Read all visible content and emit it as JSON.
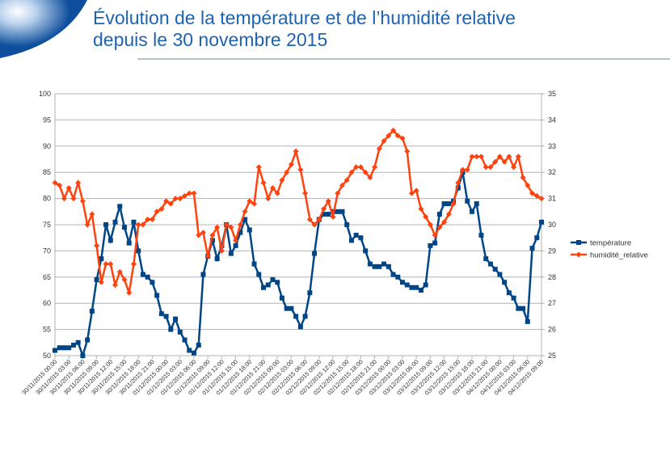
{
  "header": {
    "title": [
      "Évolution de la température et de l’humidité relative",
      "depuis le 30 novembre 2015"
    ]
  },
  "chart_data": {
    "type": "line",
    "categories": [
      "30/11/2015 00:00",
      null,
      null,
      "30/11/2015 03:00",
      null,
      null,
      "30/11/2015 06:00",
      null,
      null,
      "30/11/2015 09:00",
      null,
      null,
      "30/11/2015 12:00",
      null,
      null,
      "30/11/2015 15:00",
      null,
      null,
      "30/11/2015 18:00",
      null,
      null,
      "30/11/2015 21:00",
      null,
      null,
      "01/12/2015 00:00",
      null,
      null,
      "01/12/2015 03:00",
      null,
      null,
      "01/12/2015 06:00",
      null,
      null,
      "01/12/2015 09:00",
      null,
      null,
      "01/12/2015 12:00",
      null,
      null,
      "01/12/2015 15:00",
      null,
      null,
      "01/12/2015 18:00",
      null,
      null,
      "01/12/2015 21:00",
      null,
      null,
      "02/12/2015 00:00",
      null,
      null,
      "02/12/2015 03:00",
      null,
      null,
      "02/12/2015 06:00",
      null,
      null,
      "02/12/2015 09:00",
      null,
      null,
      "02/12/2015 12:00",
      null,
      null,
      "02/12/2015 15:00",
      null,
      null,
      "02/12/2015 18:00",
      null,
      null,
      "02/12/2015 21:00",
      null,
      null,
      "03/12/2015 00:00",
      null,
      null,
      "03/12/2015 03:00",
      null,
      null,
      "03/12/2015 06:00",
      null,
      null,
      "03/12/2015 09:00",
      null,
      null,
      "03/12/2015 12:00",
      null,
      null,
      "03/12/2015 15:00",
      null,
      null,
      "03/12/2015 18:00",
      null,
      null,
      "03/12/2015 21:00",
      null,
      null,
      "04/12/2015 00:00",
      null,
      null,
      "04/12/2015 03:00",
      null,
      null,
      "04/12/2015 06:00",
      null,
      null,
      "04/12/2015 09:00"
    ],
    "series": [
      {
        "name": "température",
        "color": "#004586",
        "axis": "y",
        "values": [
          51,
          51.5,
          51.5,
          51.5,
          52,
          52.5,
          50,
          53,
          58.5,
          64.5,
          68.5,
          75,
          72,
          75.5,
          78.5,
          74.5,
          71.5,
          75.5,
          70,
          65.5,
          65,
          64,
          61.5,
          58,
          57.5,
          55,
          57,
          54.5,
          53,
          51,
          50.5,
          52,
          65.5,
          69,
          72,
          68.5,
          71,
          75,
          69.5,
          71,
          73.5,
          76,
          74,
          67.5,
          65.5,
          63,
          63.5,
          64.5,
          64,
          61,
          59,
          59,
          57.5,
          55.5,
          57.5,
          62,
          69.5,
          76,
          77,
          77,
          77.5,
          77.5,
          77.5,
          75,
          72,
          73,
          72.5,
          70,
          67.5,
          67,
          67,
          67.5,
          67,
          65.5,
          65,
          64,
          63.5,
          63,
          63,
          62.5,
          63.5,
          71,
          71.5,
          77,
          79,
          79,
          79.5,
          82,
          85,
          79.5,
          77.5,
          79,
          73,
          68.5,
          67.5,
          66.5,
          65.5,
          64,
          62,
          61,
          59,
          59,
          56.5,
          70.5,
          72.5,
          75.5
        ]
      },
      {
        "name": "humidité_relative",
        "color": "#ff420e",
        "axis": "y2",
        "values": [
          31.6,
          31.5,
          31,
          31.4,
          31,
          31.6,
          30.9,
          30,
          30.4,
          29.2,
          27.8,
          28.5,
          28.5,
          27.7,
          28.2,
          27.9,
          27.4,
          28.5,
          30,
          30,
          30.2,
          30.2,
          30.5,
          30.6,
          30.9,
          30.8,
          31,
          31,
          31.1,
          31.2,
          31.2,
          29.6,
          29.7,
          28.8,
          29.6,
          29.9,
          29,
          30,
          29.9,
          29.4,
          30,
          30.5,
          30.9,
          30.8,
          32.2,
          31.6,
          31,
          31.4,
          31.2,
          31.7,
          32,
          32.3,
          32.8,
          32.1,
          31.2,
          30.2,
          30,
          30.2,
          30.6,
          30.9,
          30.3,
          31.2,
          31.5,
          31.7,
          32,
          32.2,
          32.2,
          32,
          31.8,
          32.2,
          32.9,
          33.2,
          33.4,
          33.6,
          33.4,
          33.3,
          32.8,
          31.2,
          31.3,
          30.6,
          30.3,
          30,
          29.6,
          29.9,
          30.1,
          30.4,
          30.8,
          31.6,
          32.1,
          32.1,
          32.6,
          32.6,
          32.6,
          32.2,
          32.2,
          32.4,
          32.6,
          32.4,
          32.6,
          32.2,
          32.6,
          31.8,
          31.5,
          31.2,
          31.1,
          31
        ]
      }
    ],
    "ylim": [
      50,
      100
    ],
    "yticks": [
      50,
      55,
      60,
      65,
      70,
      75,
      80,
      85,
      90,
      95,
      100
    ],
    "y2lim": [
      25,
      35
    ],
    "y2ticks": [
      25,
      26,
      27,
      28,
      29,
      30,
      31,
      32,
      33,
      34,
      35
    ],
    "grid": true,
    "legend": "right"
  }
}
